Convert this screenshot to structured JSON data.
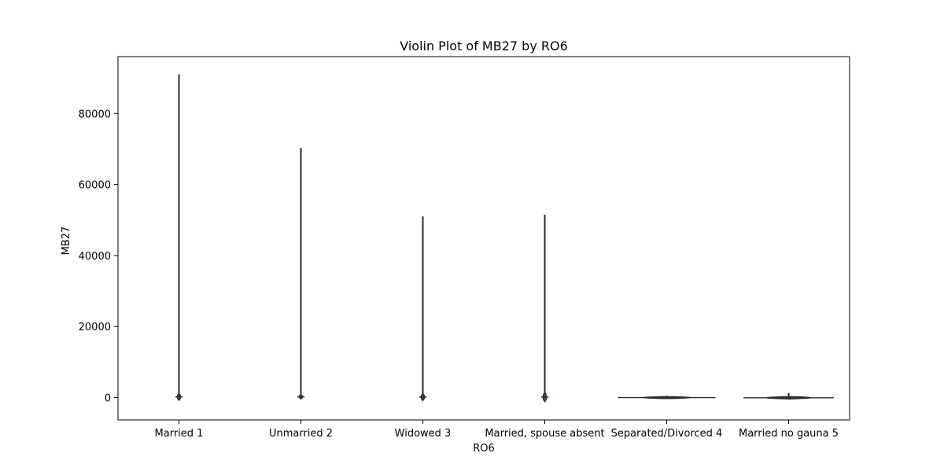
{
  "chart_data": {
    "type": "violin",
    "title": "Violin Plot of MB27 by RO6",
    "xlabel": "RO6",
    "ylabel": "MB27",
    "categories": [
      "Married 1",
      "Unmarried 2",
      "Widowed 3",
      "Married, spouse absent",
      "Separated/Divorced 4",
      "Married no gauna 5"
    ],
    "yticks": [
      0,
      20000,
      40000,
      60000,
      80000
    ],
    "ylim": [
      -6300,
      96000
    ],
    "grid": false,
    "legend": "none",
    "violin_color": "#3a4f63",
    "violins": [
      {
        "category": "Married 1",
        "min": -500,
        "max": 91000,
        "body_low": -800,
        "body_high": 1200,
        "body_half_width": 0.03
      },
      {
        "category": "Unmarried 2",
        "min": -200,
        "max": 70300,
        "body_low": -400,
        "body_high": 800,
        "body_half_width": 0.03
      },
      {
        "category": "Widowed 3",
        "min": -500,
        "max": 51000,
        "body_low": -900,
        "body_high": 1200,
        "body_half_width": 0.03
      },
      {
        "category": "Married, spouse absent",
        "min": -500,
        "max": 51500,
        "body_low": -1200,
        "body_high": 1500,
        "body_half_width": 0.03
      },
      {
        "category": "Separated/Divorced 4",
        "min": -300,
        "max": 500,
        "body_low": -300,
        "body_high": 300,
        "body_half_width": 0.4
      },
      {
        "category": "Married no gauna 5",
        "min": -300,
        "max": 1300,
        "body_low": -400,
        "body_high": 300,
        "body_half_width": 0.37
      }
    ]
  }
}
